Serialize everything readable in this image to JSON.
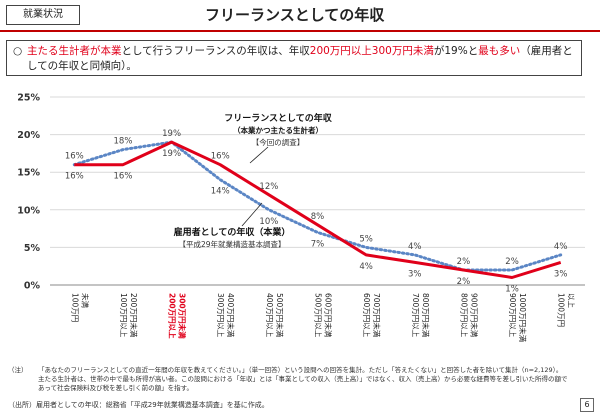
{
  "header": {
    "tag": "就業状況",
    "title": "フリーランスとしての年収"
  },
  "summary": {
    "bullet": "○",
    "parts": [
      {
        "text": "主たる生計者が本業",
        "red": true
      },
      {
        "text": "として行うフリーランスの年収は、年収",
        "red": false
      },
      {
        "text": "200万円以上300万円未満",
        "red": true
      },
      {
        "text": "が19%と",
        "red": false
      },
      {
        "text": "最も多い",
        "red": true
      },
      {
        "text": "（雇用者としての年収と同傾向）。",
        "red": false
      }
    ]
  },
  "chart_data": {
    "type": "line",
    "categories": [
      "100万円未満",
      "100万円以上200万円未満",
      "200万円以上300万円未満",
      "300万円以上400万円未満",
      "400万円以上500万円未満",
      "500万円以上600万円未満",
      "600万円以上700万円未満",
      "700万円以上800万円未満",
      "800万円以上900万円未満",
      "900万円以上1000万円未満",
      "1000万円以上"
    ],
    "category_label_lines": [
      [
        "100万円",
        "未満"
      ],
      [
        "100万円以上",
        "200万円未満"
      ],
      [
        "200万円以上",
        "300万円未満"
      ],
      [
        "300万円以上",
        "400万円未満"
      ],
      [
        "400万円以上",
        "500万円未満"
      ],
      [
        "500万円以上",
        "600万円未満"
      ],
      [
        "600万円以上",
        "700万円未満"
      ],
      [
        "700万円以上",
        "800万円未満"
      ],
      [
        "800万円以上",
        "900万円未満"
      ],
      [
        "900万円以上",
        "1000万円未満"
      ],
      [
        "1000万円",
        "以上"
      ]
    ],
    "highlight_category_index": 2,
    "series": [
      {
        "name": "フリーランスとしての年収（本業かつ主たる生計者）",
        "name_line1": "フリーランスとしての年収",
        "name_line2": "（本業かつ主たる生計者）",
        "sub": "【今回の調査】",
        "values": [
          16,
          16,
          19,
          16,
          12,
          8,
          4,
          3,
          2,
          1,
          3
        ],
        "labels": [
          "16%",
          "16%",
          "19%",
          "16%",
          "12%",
          "8%",
          "4%",
          "3%",
          "2%",
          "1%",
          "3%"
        ],
        "color": "#e0001a",
        "style": "solid"
      },
      {
        "name": "雇用者としての年収（本業）",
        "name_line1": "雇用者としての年収（本業）",
        "sub": "【平成29年就業構造基本調査】",
        "values": [
          16,
          18,
          19,
          14,
          10,
          7,
          5,
          4,
          2,
          2,
          4
        ],
        "labels": [
          "16%",
          "18%",
          "19%",
          "14%",
          "10%",
          "7%",
          "5%",
          "4%",
          "2%",
          "2%",
          "4%"
        ],
        "color": "#5b86c5",
        "style": "dotted"
      }
    ],
    "y_ticks": [
      "0%",
      "5%",
      "10%",
      "15%",
      "20%",
      "25%"
    ],
    "ylim": [
      0,
      25
    ],
    "grid": true
  },
  "notes": {
    "label": "（注）",
    "text": "「あなたのフリーランスとしての直近一年間の年収を教えてください。」（単一回答）という設問への回答を集計。ただし「答えたくない」と回答した者を除いて集計（n=2,129）。主たる生計者は、世帯の中で最も所得が高い者。この設問における「年収」とは「事業としての収入（売上高）」ではなく、収入（売上高）から必要な経費等を差し引いた所得の額であって社会保険料及び税を差し引く前の額」を指す。"
  },
  "source": {
    "label": "（出所）",
    "text": "雇用者としての年収：総務省「平成29年就業構造基本調査」を基に作成。"
  },
  "page_number": "6"
}
